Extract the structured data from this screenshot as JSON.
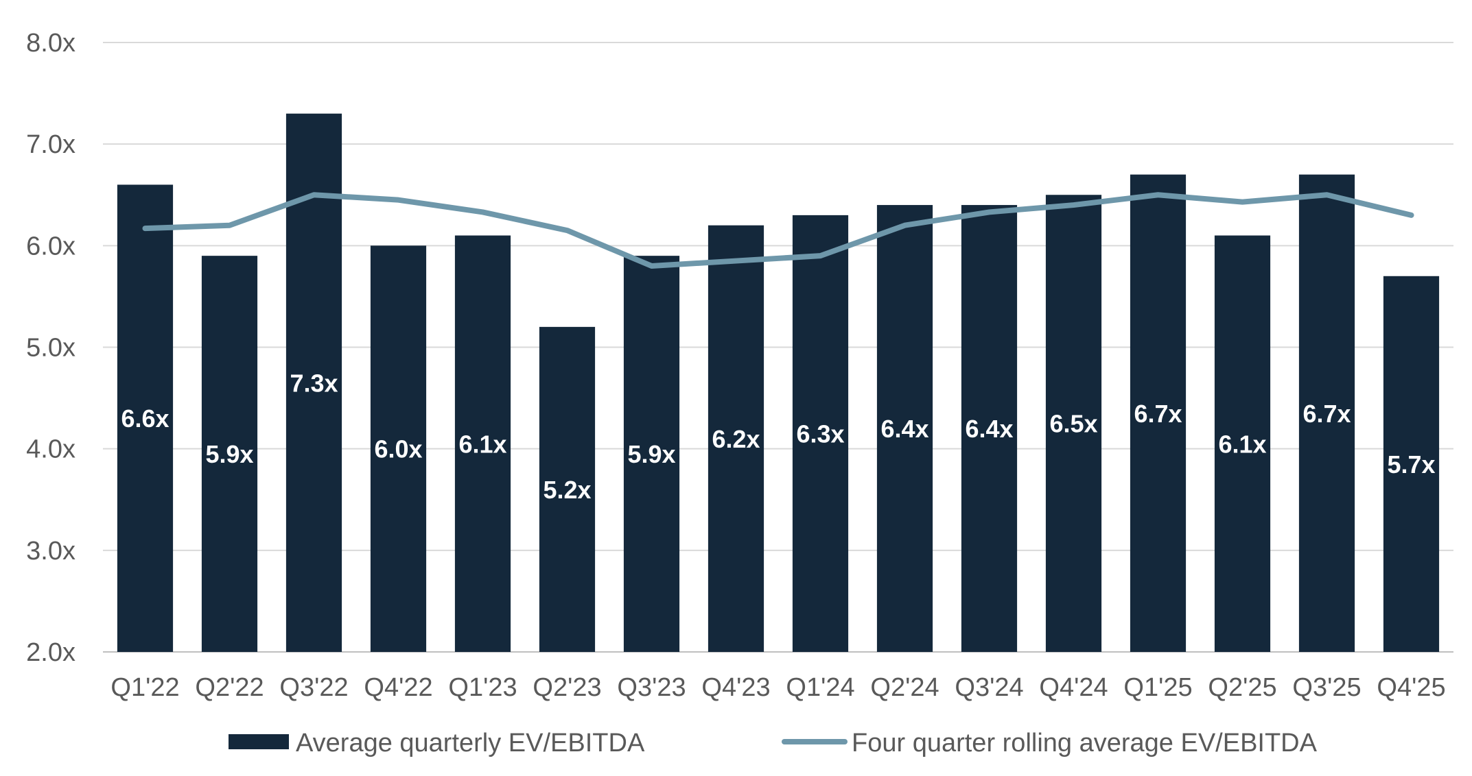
{
  "chart_data": {
    "type": "bar",
    "categories": [
      "Q1'22",
      "Q2'22",
      "Q3'22",
      "Q4'22",
      "Q1'23",
      "Q2'23",
      "Q3'23",
      "Q4'23",
      "Q1'24",
      "Q2'24",
      "Q3'24",
      "Q4'24",
      "Q1'25",
      "Q2'25",
      "Q3'25",
      "Q4'25"
    ],
    "series": [
      {
        "name": "Average quarterly EV/EBITDA",
        "type": "bar",
        "color": "#14283b",
        "values": [
          6.6,
          5.9,
          7.3,
          6.0,
          6.1,
          5.2,
          5.9,
          6.2,
          6.3,
          6.4,
          6.4,
          6.5,
          6.7,
          6.1,
          6.7,
          5.7
        ],
        "labels": [
          "6.6x",
          "5.9x",
          "7.3x",
          "6.0x",
          "6.1x",
          "5.2x",
          "5.9x",
          "6.2x",
          "6.3x",
          "6.4x",
          "6.4x",
          "6.5x",
          "6.7x",
          "6.1x",
          "6.7x",
          "5.7x"
        ]
      },
      {
        "name": "Four quarter rolling average EV/EBITDA",
        "type": "line",
        "color": "#6e97aa",
        "values": [
          6.17,
          6.2,
          6.5,
          6.45,
          6.33,
          6.15,
          5.8,
          5.85,
          5.9,
          6.2,
          6.33,
          6.4,
          6.5,
          6.43,
          6.5,
          6.3
        ]
      }
    ],
    "ylim": [
      2.0,
      8.0
    ],
    "yticks": [
      2.0,
      3.0,
      4.0,
      5.0,
      6.0,
      7.0,
      8.0
    ],
    "ytick_labels": [
      "2.0x",
      "3.0x",
      "4.0x",
      "5.0x",
      "6.0x",
      "7.0x",
      "8.0x"
    ],
    "title": "",
    "xlabel": "",
    "ylabel": "",
    "grid": true,
    "legend_position": "bottom",
    "gridline_color": "#d9d9d9",
    "text_color": "#595959"
  }
}
